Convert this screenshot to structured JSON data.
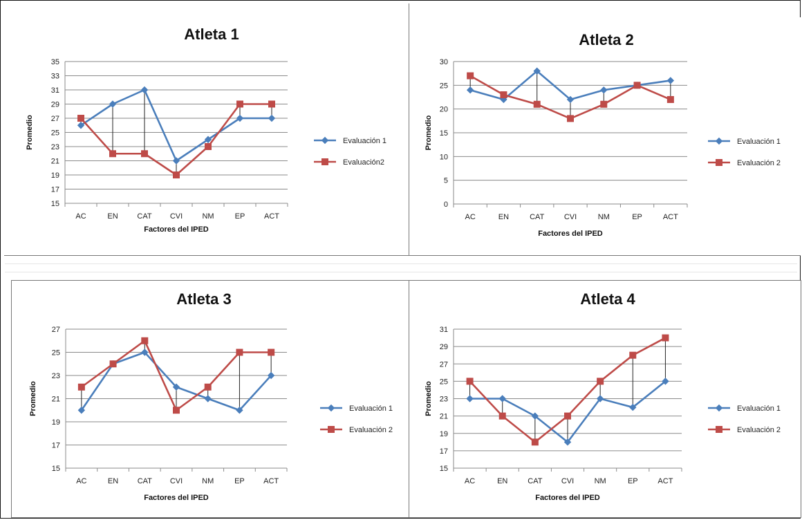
{
  "chart_data": [
    {
      "type": "line",
      "title": "Atleta 1",
      "xlabel": "Factores del IPED",
      "ylabel": "Promedio",
      "categories": [
        "AC",
        "EN",
        "CAT",
        "CVI",
        "NM",
        "EP",
        "ACT"
      ],
      "ylim": [
        15,
        35
      ],
      "yticks": [
        15,
        17,
        19,
        21,
        23,
        25,
        27,
        29,
        31,
        33,
        35
      ],
      "grid": true,
      "legend_position": "right",
      "drop_lines": true,
      "series": [
        {
          "name": "Evaluación 1",
          "color": "#4a7ebb",
          "marker": "diamond",
          "values": [
            26,
            29,
            31,
            21,
            24,
            27,
            27
          ]
        },
        {
          "name": "Evaluación2",
          "color": "#be4b48",
          "marker": "square",
          "values": [
            27,
            22,
            22,
            19,
            23,
            29,
            29
          ]
        }
      ]
    },
    {
      "type": "line",
      "title": "Atleta 2",
      "xlabel": "Factores del IPED",
      "ylabel": "Promedio",
      "categories": [
        "AC",
        "EN",
        "CAT",
        "CVI",
        "NM",
        "EP",
        "ACT"
      ],
      "ylim": [
        0,
        30
      ],
      "yticks": [
        0,
        5,
        10,
        15,
        20,
        25,
        30
      ],
      "grid": true,
      "legend_position": "right",
      "drop_lines": true,
      "series": [
        {
          "name": "Evaluación 1",
          "color": "#4a7ebb",
          "marker": "diamond",
          "values": [
            24,
            22,
            28,
            22,
            24,
            25,
            26
          ]
        },
        {
          "name": "Evaluación 2",
          "color": "#be4b48",
          "marker": "square",
          "values": [
            27,
            23,
            21,
            18,
            21,
            25,
            22
          ]
        }
      ]
    },
    {
      "type": "line",
      "title": "Atleta 3",
      "xlabel": "Factores del IPED",
      "ylabel": "Promedio",
      "categories": [
        "AC",
        "EN",
        "CAT",
        "CVI",
        "NM",
        "EP",
        "ACT"
      ],
      "ylim": [
        15,
        27
      ],
      "yticks": [
        15,
        17,
        19,
        21,
        23,
        25,
        27
      ],
      "grid": true,
      "legend_position": "right",
      "drop_lines": true,
      "series": [
        {
          "name": "Evaluación 1",
          "color": "#4a7ebb",
          "marker": "diamond",
          "values": [
            20,
            24,
            25,
            22,
            21,
            20,
            23
          ]
        },
        {
          "name": "Evaluación 2",
          "color": "#be4b48",
          "marker": "square",
          "values": [
            22,
            24,
            26,
            20,
            22,
            25,
            25
          ]
        }
      ]
    },
    {
      "type": "line",
      "title": "Atleta 4",
      "xlabel": "Factores del IPED",
      "ylabel": "Promedio",
      "categories": [
        "AC",
        "EN",
        "CAT",
        "CVI",
        "NM",
        "EP",
        "ACT"
      ],
      "ylim": [
        15,
        31
      ],
      "yticks": [
        15,
        17,
        19,
        21,
        23,
        25,
        27,
        29,
        31
      ],
      "grid": true,
      "legend_position": "right",
      "drop_lines": true,
      "series": [
        {
          "name": "Evaluación 1",
          "color": "#4a7ebb",
          "marker": "diamond",
          "values": [
            23,
            23,
            21,
            18,
            23,
            22,
            25
          ]
        },
        {
          "name": "Evaluación 2",
          "color": "#be4b48",
          "marker": "square",
          "values": [
            25,
            21,
            18,
            21,
            25,
            28,
            30
          ]
        }
      ]
    }
  ]
}
